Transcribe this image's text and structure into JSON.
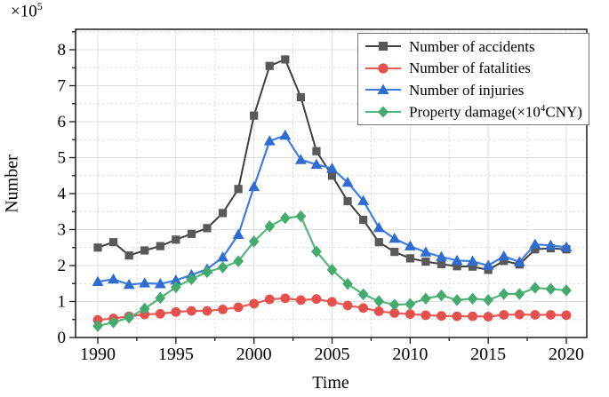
{
  "figure": {
    "y_mult_base": "×10",
    "y_mult_exp": "5"
  },
  "legend": {
    "position": "top-right",
    "damage_label": {
      "pre": "Property damage(×10",
      "exp": "4",
      "post": "CNY)"
    }
  },
  "chart_data": {
    "type": "line",
    "xlabel": "Time",
    "ylabel": "Number",
    "y_axis_multiplier": "×10⁵",
    "x": [
      1990,
      1991,
      1992,
      1993,
      1994,
      1995,
      1996,
      1997,
      1998,
      1999,
      2000,
      2001,
      2002,
      2003,
      2004,
      2005,
      2006,
      2007,
      2008,
      2009,
      2010,
      2011,
      2012,
      2013,
      2014,
      2015,
      2016,
      2017,
      2018,
      2019,
      2020
    ],
    "xlim": [
      1988.6,
      2021.3
    ],
    "ylim": [
      0,
      8.6
    ],
    "x_major_ticks": [
      1990,
      1995,
      2000,
      2005,
      2010,
      2015,
      2020
    ],
    "x_minor_ticks": [
      1992.5,
      1997.5,
      2002.5,
      2007.5,
      2012.5,
      2017.5
    ],
    "y_major_ticks": [
      0,
      1,
      2,
      3,
      4,
      5,
      6,
      7,
      8
    ],
    "y_minor_tick_step": 0.5,
    "grid": "major-solid-light, minor-dotted",
    "legend_position": "top-right-inside",
    "series": [
      {
        "name": "Number of accidents",
        "marker": "square",
        "color": "#595959",
        "line_color": "#404040",
        "values": [
          2.5,
          2.65,
          2.28,
          2.42,
          2.54,
          2.72,
          2.88,
          3.04,
          3.46,
          4.13,
          6.17,
          7.55,
          7.73,
          6.68,
          5.18,
          4.5,
          3.79,
          3.27,
          2.65,
          2.38,
          2.2,
          2.11,
          2.04,
          1.98,
          1.97,
          1.88,
          2.13,
          2.03,
          2.45,
          2.48,
          2.45
        ]
      },
      {
        "name": "Number of fatalities",
        "marker": "circle",
        "color": "#e6504c",
        "line_color": "#ec5a56",
        "values": [
          0.49,
          0.53,
          0.59,
          0.64,
          0.66,
          0.71,
          0.74,
          0.74,
          0.78,
          0.84,
          0.94,
          1.06,
          1.09,
          1.04,
          1.07,
          0.99,
          0.89,
          0.82,
          0.73,
          0.68,
          0.65,
          0.62,
          0.6,
          0.59,
          0.59,
          0.58,
          0.63,
          0.64,
          0.63,
          0.63,
          0.62
        ]
      },
      {
        "name": "Number of injuries",
        "marker": "triangle",
        "color": "#2e6cd2",
        "line_color": "#3e7ee4",
        "values": [
          1.55,
          1.62,
          1.47,
          1.51,
          1.49,
          1.59,
          1.74,
          1.9,
          2.23,
          2.86,
          4.19,
          5.46,
          5.62,
          4.94,
          4.81,
          4.7,
          4.31,
          3.8,
          3.05,
          2.75,
          2.54,
          2.37,
          2.24,
          2.14,
          2.12,
          2.0,
          2.26,
          2.1,
          2.59,
          2.56,
          2.51
        ]
      },
      {
        "name": "Property damage(×10⁴CNY)",
        "marker": "diamond",
        "color": "#45aa6e",
        "line_color": "#52b77a",
        "values": [
          0.32,
          0.42,
          0.55,
          0.8,
          1.1,
          1.4,
          1.62,
          1.82,
          1.95,
          2.12,
          2.67,
          3.09,
          3.32,
          3.37,
          2.39,
          1.88,
          1.49,
          1.2,
          1.01,
          0.91,
          0.93,
          1.08,
          1.17,
          1.04,
          1.08,
          1.04,
          1.21,
          1.21,
          1.38,
          1.35,
          1.31
        ]
      }
    ]
  }
}
